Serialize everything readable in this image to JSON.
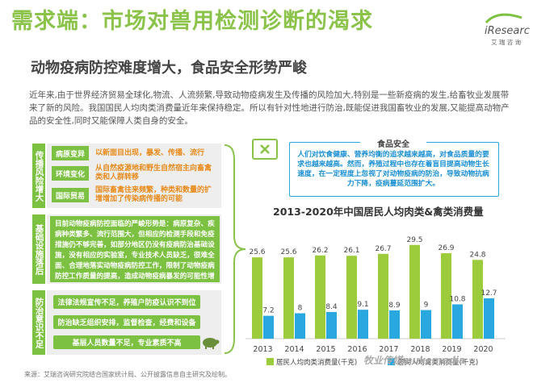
{
  "header": {
    "title": "需求端：市场对兽用检测诊断的渴求",
    "subtitle": "动物疫病防控难度增大，食品安全形势严峻",
    "logo": "iResearch",
    "logo_sub": "艾 瑞 咨 询"
  },
  "intro": "近年来,由于世界经济贸易全球化,物流、人流频繁,导致动物疫病发生及传播的风险加大,特别是一些新疫病的发生,给畜牧业发展带来了新的风险。我国国民人均肉类消费量近年来保持稳定。所以有针对性地进行防治,既能促进我国畜牧业的发展,又能提高动物产品的安全性,同时又能保障人类自身的安全。",
  "left": {
    "risk_label": "传播风险增大",
    "risk_items": [
      {
        "tag": "病原变异",
        "text": "以新面目出现，暴发、传播、流行"
      },
      {
        "tag": "环境变化",
        "text": "从自然疫源地和野生自然宿主向畜禽类和人群转移"
      },
      {
        "tag": "国际贸易",
        "text": "国际畜禽往来频繁，种类和数量的扩增增加了传染病传播的可能"
      }
    ],
    "infra_label": "基础设施落后",
    "infra_text": "目前动物疫病防控面临的严峻形势是：病原复杂、疾病种类繁多、流行范围大，但相应的检测手段和免疫措施仍不够完善，如部分地区仍没有疫病防治基础设施，没有相应的实验室，专业技术人员缺乏，很难全面、合理地落实动物疫病防控工作，限制了动物疫病防控工作质量的提高，造成动物疫病暴发的可能性增大。",
    "awareness_label": "防治意识不足",
    "awareness_items": [
      "法律法规宣传不足，养殖户防疫认识不到位",
      "防治缺乏组织安排，监督检查，经费和设备",
      "基层人员数量不足，专业素质不高"
    ]
  },
  "food": {
    "title": "食品安全",
    "text": "人们对饮食健康、营养均衡的追求越来越高，对食品质量的要求也越来越高。然而，养殖过程中也存在着盲目提高动物生长速度，在一定程度上忽视了对动物疫病的防治，导致动物抗病力下降，疫病蔓延范围扩大。"
  },
  "chart_data": {
    "type": "bar",
    "title": "2013-2020年中国居民人均肉类&禽类消费量",
    "categories": [
      "2013",
      "2014",
      "2015",
      "2016",
      "2017",
      "2018",
      "2019",
      "2020"
    ],
    "series": [
      {
        "name": "居民人均肉类消费量(千克)",
        "values": [
          25.6,
          25.6,
          26.2,
          26.1,
          26.7,
          29.5,
          26.9,
          24.8
        ],
        "color": "#9ccc3c"
      },
      {
        "name": "居民人均禽类消费量(千克)",
        "values": [
          7.2,
          8.0,
          8.4,
          9.1,
          8.9,
          9.0,
          10.8,
          12.7
        ],
        "color": "#29a8e0"
      }
    ],
    "ylim": [
      0,
      33
    ]
  },
  "watermark": "牧业传媒mukemedia",
  "source": "来源：艾瑞咨询研究院结合国家统计局、公开披露信息自主研究及绘制。"
}
